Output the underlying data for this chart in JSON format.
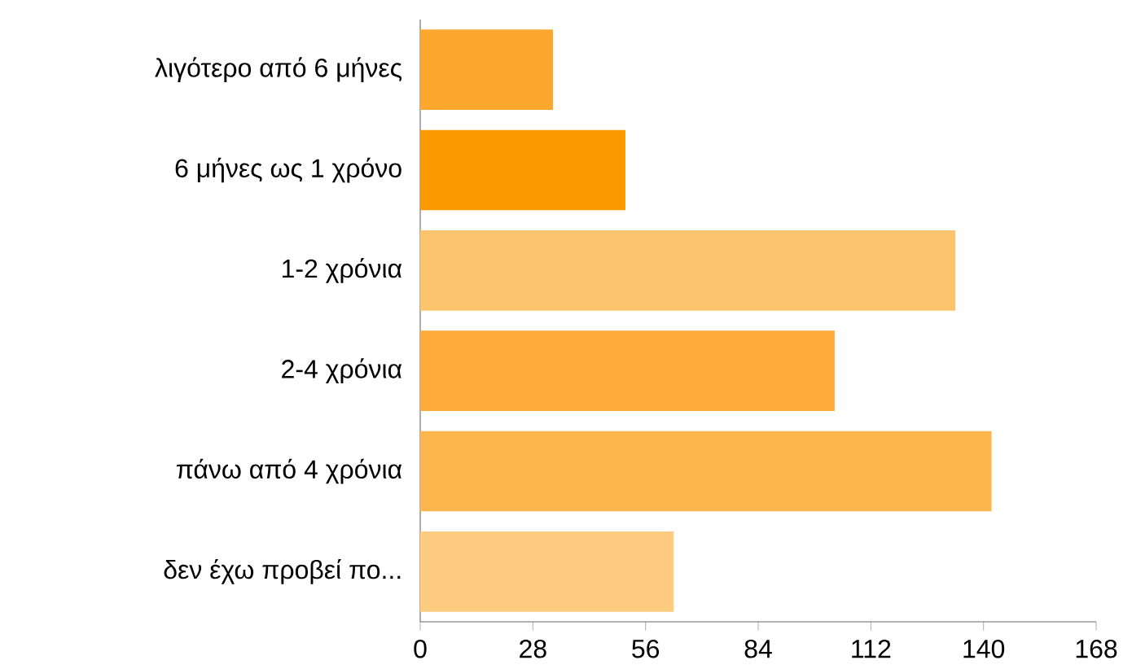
{
  "chart_data": {
    "type": "bar",
    "orientation": "horizontal",
    "categories": [
      "λιγότερο από 6 μήνες",
      "6 μήνες ως 1 χρόνο",
      "1-2 χρόνια",
      "2-4 χρόνια",
      "πάνω από 4 χρόνια",
      "δεν έχω προβεί πο..."
    ],
    "values": [
      33,
      51,
      133,
      103,
      142,
      63
    ],
    "colors": [
      "#fca82e",
      "#fb9a00",
      "#fdc46e",
      "#fdab3a",
      "#fdb54e",
      "#fdcc80"
    ],
    "xlim": [
      0,
      168
    ],
    "xticks": [
      0,
      28,
      56,
      84,
      112,
      140,
      168
    ]
  }
}
